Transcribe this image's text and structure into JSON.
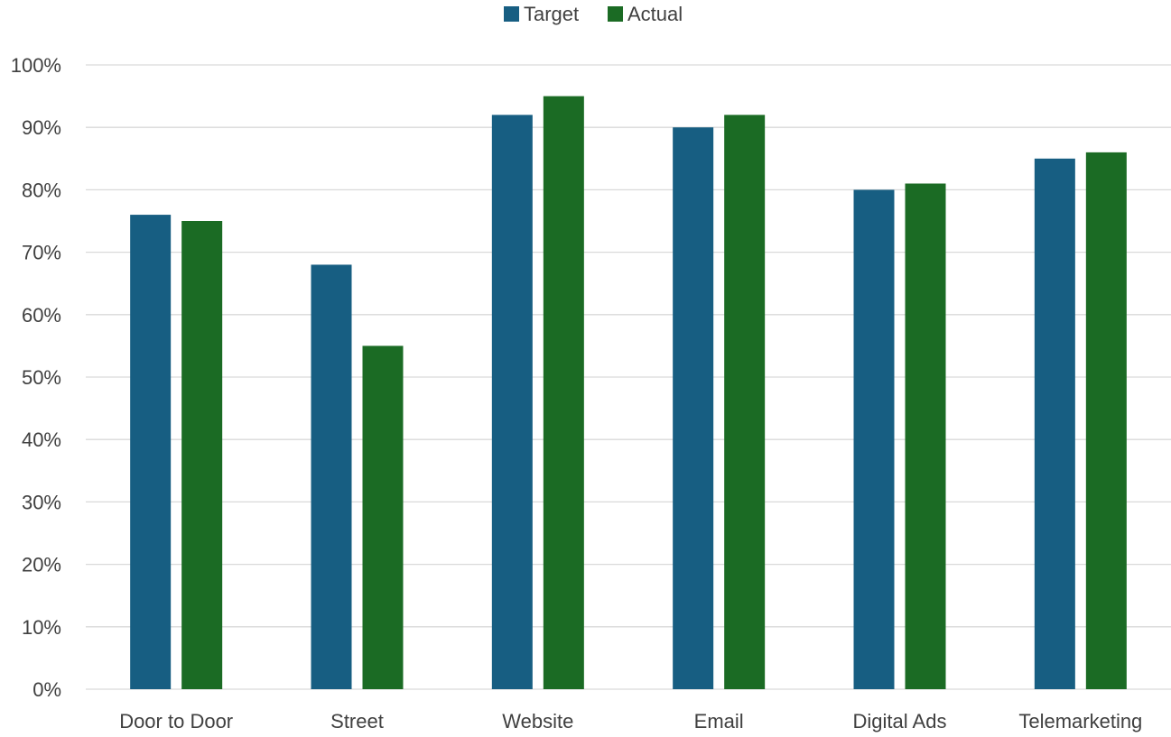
{
  "chart_data": {
    "type": "bar",
    "categories": [
      "Door to Door",
      "Street",
      "Website",
      "Email",
      "Digital Ads",
      "Telemarketing"
    ],
    "series": [
      {
        "name": "Target",
        "values": [
          76,
          68,
          92,
          90,
          80,
          85
        ],
        "color": "#175e82"
      },
      {
        "name": "Actual",
        "values": [
          75,
          55,
          95,
          92,
          81,
          86
        ],
        "color": "#1b6b24"
      }
    ],
    "title": "",
    "xlabel": "",
    "ylabel": "",
    "ylim": [
      0,
      100
    ],
    "y_ticks": [
      "0%",
      "10%",
      "20%",
      "30%",
      "40%",
      "50%",
      "60%",
      "70%",
      "80%",
      "90%",
      "100%"
    ],
    "grid": true,
    "legend_position": "top-center"
  }
}
